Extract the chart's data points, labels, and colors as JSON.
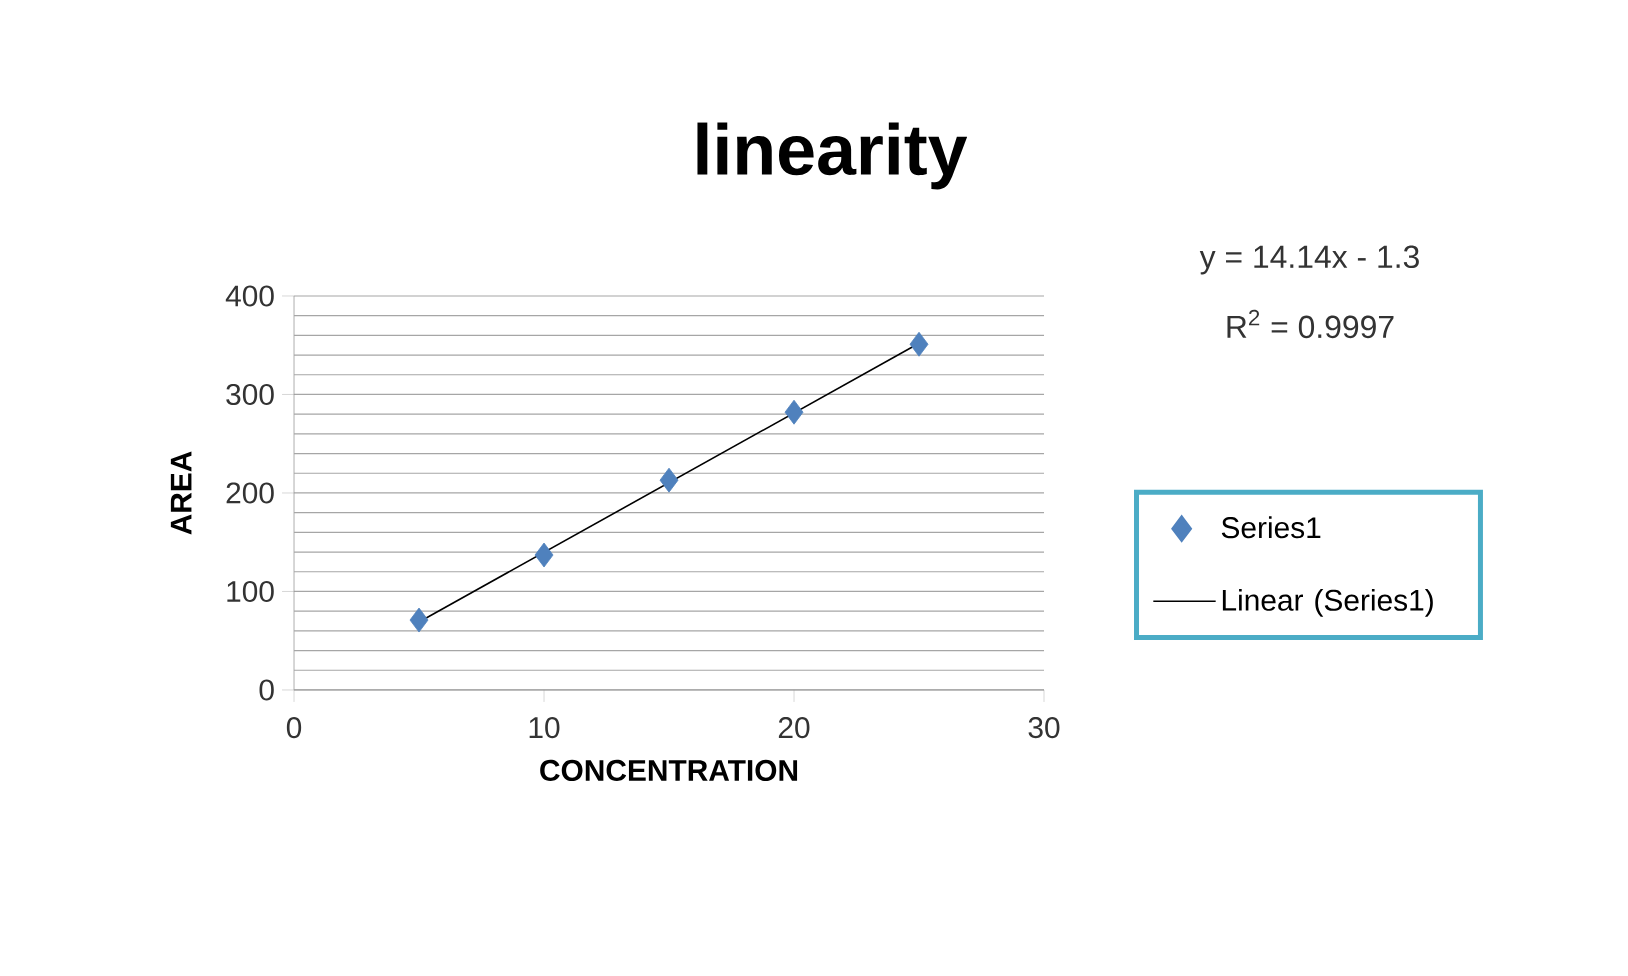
{
  "chart_data": {
    "type": "scatter",
    "title": "linearity",
    "xlabel": "CONCENTRATION",
    "ylabel": "AREA",
    "annotations": [
      "y = 14.14x - 1.3",
      "R$^{2}$ = 0.9997"
    ],
    "xlim": [
      0,
      30
    ],
    "xticks": [
      0,
      10,
      20,
      30
    ],
    "ylim": [
      0,
      400
    ],
    "yticks": [
      0,
      {
        "value": 20,
        "label": null
      },
      {
        "value": 40,
        "label": null
      },
      {
        "value": 60,
        "label": null
      },
      {
        "value": 80,
        "label": null
      },
      100,
      {
        "value": 120,
        "label": null
      },
      {
        "value": 140,
        "label": null
      },
      {
        "value": 160,
        "label": null
      },
      {
        "value": 180,
        "label": null
      },
      200,
      {
        "value": 220,
        "label": null
      },
      {
        "value": 240,
        "label": null
      },
      {
        "value": 260,
        "label": null
      },
      {
        "value": 280,
        "label": null
      },
      300,
      {
        "value": 320,
        "label": null
      },
      {
        "value": 340,
        "label": null
      },
      {
        "value": 360,
        "label": null
      },
      {
        "value": 380,
        "label": null
      },
      400
    ],
    "grid": "y",
    "legend": "right",
    "series": [
      {
        "name": "Series1",
        "marker": "diamond",
        "color": "#4f81bd",
        "x": [
          5,
          10,
          15,
          20,
          25
        ],
        "values": [
          71,
          137,
          213,
          282,
          351
        ]
      },
      {
        "name": "Linear (Series1)",
        "type": "line",
        "marker": "none",
        "color": "#000000",
        "x": [
          5,
          25
        ],
        "values": [
          69,
          352
        ]
      }
    ]
  }
}
